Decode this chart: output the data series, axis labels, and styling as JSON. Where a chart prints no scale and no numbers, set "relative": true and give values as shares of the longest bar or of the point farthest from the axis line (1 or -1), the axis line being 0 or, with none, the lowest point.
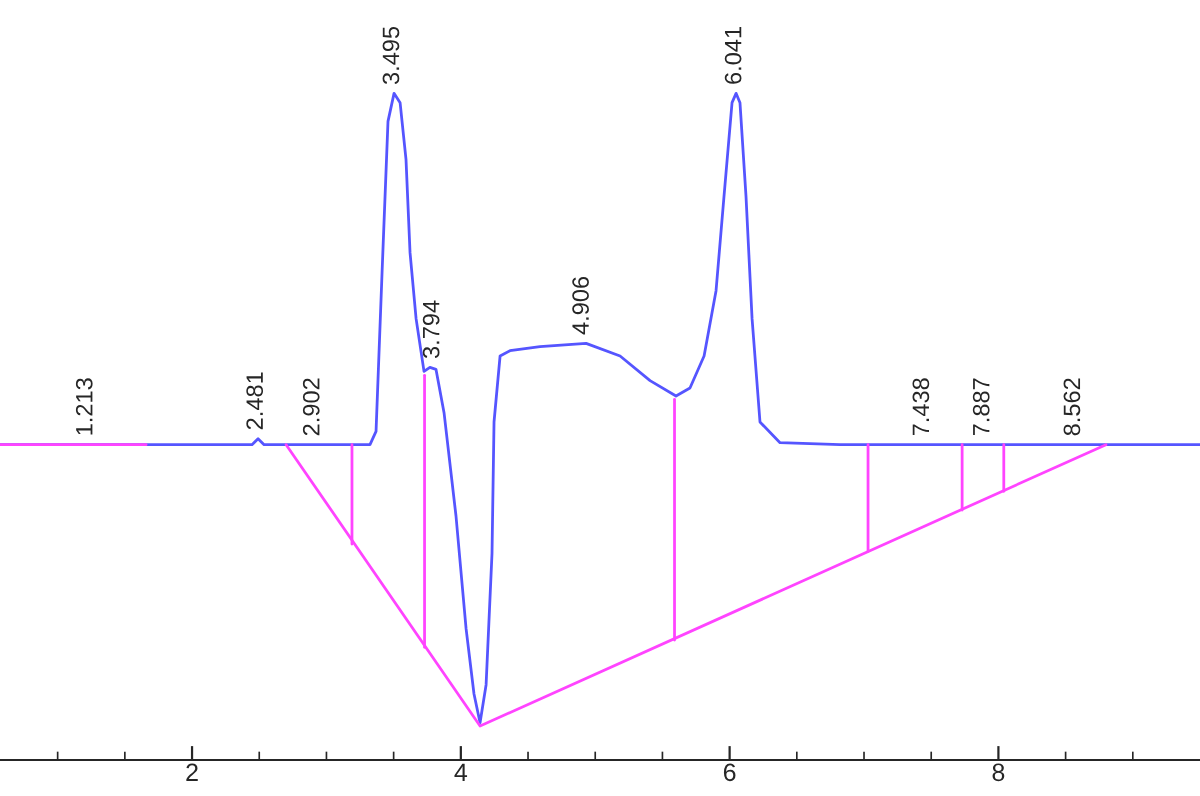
{
  "chart_data": {
    "type": "line",
    "relative": true,
    "grid": false,
    "legend": false,
    "tick_labels": "x",
    "marker": "none",
    "line_style": "solid",
    "xlim": [
      0.571,
      9.5
    ],
    "xticks": [
      {
        "value": 1.0,
        "label": null
      },
      {
        "value": 1.5,
        "label": null
      },
      2,
      {
        "value": 2.5,
        "label": null
      },
      {
        "value": 3.0,
        "label": null
      },
      {
        "value": 3.5,
        "label": null
      },
      4,
      {
        "value": 4.5,
        "label": null
      },
      {
        "value": 5.0,
        "label": null
      },
      {
        "value": 5.5,
        "label": null
      },
      6,
      {
        "value": 6.5,
        "label": null
      },
      {
        "value": 7.0,
        "label": null
      },
      {
        "value": 7.5,
        "label": null
      },
      8,
      {
        "value": 8.5,
        "label": null
      },
      {
        "value": 9.0,
        "label": null
      }
    ],
    "series": [
      {
        "color": "#5555ff",
        "x": [
          0.571,
          2.446,
          2.491,
          2.536,
          3.324,
          3.369,
          3.414,
          3.458,
          3.503,
          3.548,
          3.592,
          3.622,
          3.667,
          3.726,
          3.77,
          3.815,
          3.875,
          3.964,
          4.039,
          4.098,
          4.143,
          4.188,
          4.232,
          4.247,
          4.292,
          4.366,
          4.589,
          4.932,
          5.185,
          5.408,
          5.601,
          5.705,
          5.81,
          5.899,
          5.958,
          6.018,
          6.048,
          6.077,
          6.122,
          6.167,
          6.226,
          6.375,
          6.821,
          9.5
        ],
        "values": [
          0.473,
          0.473,
          0.482,
          0.473,
          0.473,
          0.493,
          0.732,
          0.958,
          1.0,
          0.986,
          0.901,
          0.761,
          0.662,
          0.583,
          0.589,
          0.586,
          0.521,
          0.366,
          0.197,
          0.099,
          0.056,
          0.113,
          0.31,
          0.507,
          0.606,
          0.614,
          0.62,
          0.625,
          0.606,
          0.569,
          0.546,
          0.558,
          0.606,
          0.704,
          0.845,
          0.986,
          1.0,
          0.986,
          0.845,
          0.662,
          0.507,
          0.476,
          0.473,
          0.473
        ]
      },
      {
        "color": "#ff44ff",
        "x": [
          0.571,
          1.658
        ],
        "values": [
          0.473,
          0.473
        ]
      },
      {
        "color": "#ff44ff",
        "x": [
          2.7,
          4.143,
          8.8
        ],
        "values": [
          0.473,
          0.051,
          0.473
        ]
      },
      {
        "color": "#ff44ff",
        "x": [
          3.19,
          3.19
        ],
        "values": [
          0.473,
          0.324
        ]
      },
      {
        "color": "#ff44ff",
        "x": [
          3.73,
          3.73
        ],
        "values": [
          0.577,
          0.169
        ]
      },
      {
        "color": "#ff44ff",
        "x": [
          5.59,
          5.59
        ],
        "values": [
          0.541,
          0.18
        ]
      },
      {
        "color": "#ff44ff",
        "x": [
          7.03,
          7.03
        ],
        "values": [
          0.473,
          0.313
        ]
      },
      {
        "color": "#ff44ff",
        "x": [
          7.73,
          7.73
        ],
        "values": [
          0.473,
          0.375
        ]
      },
      {
        "color": "#ff44ff",
        "x": [
          8.04,
          8.04
        ],
        "values": [
          0.473,
          0.403
        ]
      }
    ],
    "annotations": [
      {
        "text": "1.213",
        "x": 1.213,
        "y": 0.473
      },
      {
        "text": "2.481",
        "x": 2.481,
        "y": 0.482
      },
      {
        "text": "2.902",
        "x": 2.902,
        "y": 0.473
      },
      {
        "text": "3.495",
        "x": 3.495,
        "y": 1.0
      },
      {
        "text": "3.794",
        "x": 3.794,
        "y": 0.589
      },
      {
        "text": "4.906",
        "x": 4.906,
        "y": 0.625
      },
      {
        "text": "6.041",
        "x": 6.041,
        "y": 1.0
      },
      {
        "text": "7.438",
        "x": 7.438,
        "y": 0.473
      },
      {
        "text": "7.887",
        "x": 7.887,
        "y": 0.473
      },
      {
        "text": "8.562",
        "x": 8.562,
        "y": 0.473
      }
    ]
  }
}
